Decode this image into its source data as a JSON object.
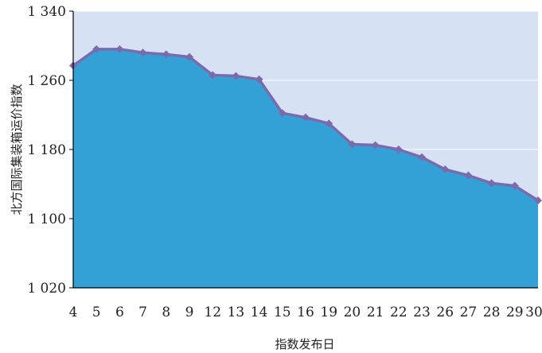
{
  "chart_data": {
    "type": "area",
    "title": "",
    "xlabel": "指数发布日",
    "ylabel": "北方国际集装箱运价指数",
    "x": [
      "4",
      "5",
      "6",
      "7",
      "8",
      "9",
      "12",
      "13",
      "14",
      "15",
      "16",
      "19",
      "20",
      "21",
      "22",
      "23",
      "26",
      "27",
      "28",
      "29",
      "30"
    ],
    "values": [
      1277,
      1296,
      1296,
      1292,
      1290,
      1287,
      1266,
      1265,
      1261,
      1222,
      1217,
      1210,
      1186,
      1185,
      1180,
      1171,
      1157,
      1150,
      1141,
      1138,
      1121
    ],
    "ylim": [
      1020,
      1340
    ],
    "yticks": [
      1020,
      1100,
      1180,
      1260,
      1340
    ],
    "ytick_labels": [
      "1 020",
      "1 100",
      "1 180",
      "1 260",
      "1 340"
    ],
    "grid": true,
    "colors": {
      "area_fill": "#33a1d6",
      "plot_background": "#d6e2f3",
      "line": "#7b6bad",
      "marker": "#7b6bad",
      "grid": "#ffffff"
    }
  }
}
